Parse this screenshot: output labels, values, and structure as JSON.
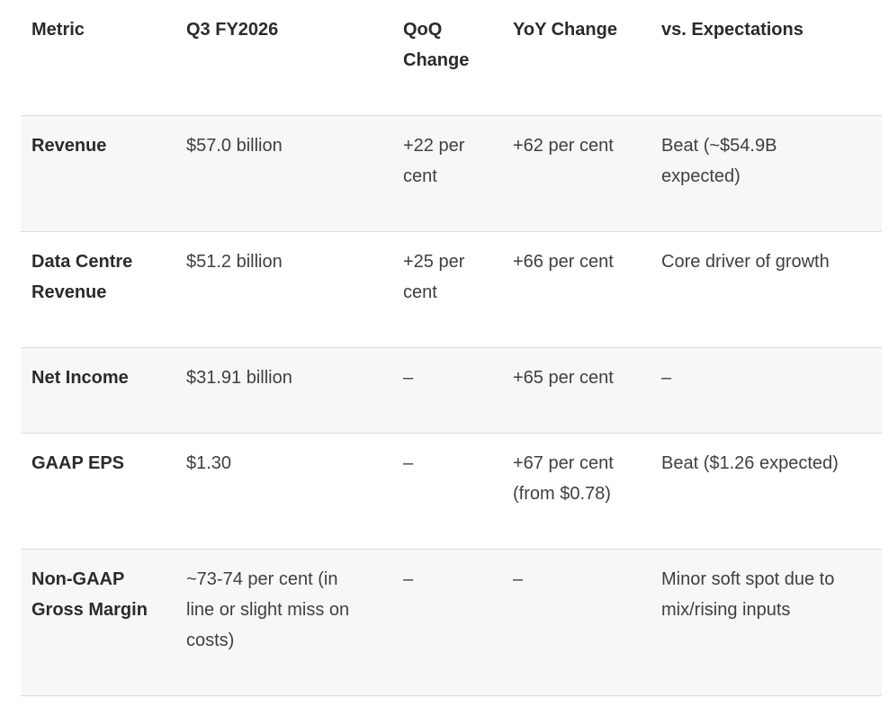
{
  "chart_data": {
    "type": "table",
    "title": "",
    "columns": [
      {
        "key": "metric",
        "label": "Metric"
      },
      {
        "key": "q3",
        "label": "Q3 FY2026"
      },
      {
        "key": "qoq",
        "label": "QoQ Change"
      },
      {
        "key": "yoy",
        "label": "YoY Change"
      },
      {
        "key": "vs",
        "label": "vs. Expectations"
      }
    ],
    "rows": [
      {
        "metric": "Revenue",
        "q3": "$57.0 billion",
        "qoq": "+22 per cent",
        "yoy": "+62 per cent",
        "vs": "Beat (~$54.9B expected)"
      },
      {
        "metric": "Data Centre Revenue",
        "q3": "$51.2 billion",
        "qoq": "+25 per cent",
        "yoy": "+66 per cent",
        "vs": "Core driver of growth"
      },
      {
        "metric": "Net Income",
        "q3": "$31.91 billion",
        "qoq": "–",
        "yoy": "+65 per cent",
        "vs": "–"
      },
      {
        "metric": "GAAP EPS",
        "q3": "$1.30",
        "qoq": "–",
        "yoy": "+67 per cent (from $0.78)",
        "vs": "Beat ($1.26 expected)"
      },
      {
        "metric": "Non-GAAP Gross Margin",
        "q3": "~73-74 per cent (in line or slight miss on costs)",
        "qoq": "–",
        "yoy": "–",
        "vs": "Minor soft spot due to mix/rising inputs"
      }
    ],
    "layout": {
      "striped_rows": "odd rows shaded (1st, 3rd, 5th)",
      "gridlines": "horizontal only"
    },
    "colors": {
      "stripe_background": "#f7f7f7",
      "row_border": "#dbdbdb",
      "header_text": "#2b2b2b",
      "body_text": "#3f3f3f"
    }
  }
}
